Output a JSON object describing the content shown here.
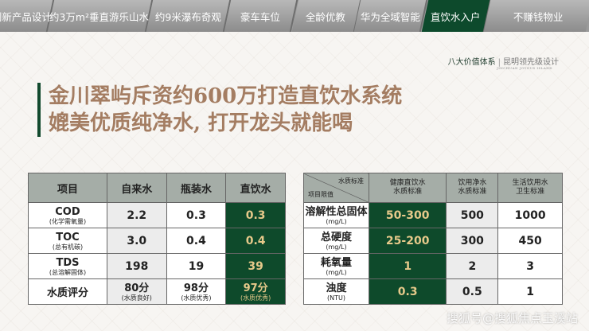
{
  "tabs": [
    {
      "label": "创新产品设计",
      "active": false
    },
    {
      "label": "约3万m²垂直游乐山水",
      "active": false
    },
    {
      "label": "约9米瀑布奇观",
      "active": false
    },
    {
      "label": "豪车车位",
      "active": false
    },
    {
      "label": "全龄优教",
      "active": false
    },
    {
      "label": "华为全域智能",
      "active": false
    },
    {
      "label": "直饮水入户",
      "active": true
    },
    {
      "label": "不赚钱物业",
      "active": false
    }
  ],
  "brand": {
    "main": "八大价值体系",
    "sep": "|",
    "sub": "昆明领先级设计",
    "en": "JINCHUAN JOYOUS ISLAND"
  },
  "title": {
    "line1": "金川翠屿斥资约600万打造直饮水系统",
    "line2": "媲美优质纯净水, 打开龙头就能喝"
  },
  "left_table": {
    "headers": [
      "项目",
      "自来水",
      "瓶装水",
      "直饮水"
    ],
    "rows": [
      {
        "name": "COD",
        "note": "(化学需氧量)",
        "values": [
          "2.2",
          "0.3",
          "0.3"
        ]
      },
      {
        "name": "TOC",
        "note": "(总有机碳)",
        "values": [
          "3.0",
          "0.4",
          "0.4"
        ]
      },
      {
        "name": "TDS",
        "note": "(总溶解固体)",
        "values": [
          "198",
          "19",
          "39"
        ]
      }
    ],
    "score": {
      "name": "水质评分",
      "values": [
        {
          "v": "80分",
          "n": "(水质良好)"
        },
        {
          "v": "98分",
          "n": "(水质优秀)"
        },
        {
          "v": "97分",
          "n": "(水质优秀)"
        }
      ]
    }
  },
  "right_table": {
    "corner_top": "水质标准",
    "corner_bottom": "项目限值",
    "headers": [
      [
        "健康直饮水",
        "水质标准"
      ],
      [
        "饮用净水",
        "水质标准"
      ],
      [
        "生活饮用水",
        "卫生标准"
      ]
    ],
    "rows": [
      {
        "name": "溶解性总固体",
        "unit": "(mg/L)",
        "values": [
          "50-300",
          "500",
          "1000"
        ]
      },
      {
        "name": "总硬度",
        "unit": "(mg/L)",
        "values": [
          "25-200",
          "300",
          "450"
        ]
      },
      {
        "name": "耗氧量",
        "unit": "(mg/L)",
        "values": [
          "1",
          "2",
          "3"
        ]
      },
      {
        "name": "浊度",
        "unit": "(NTU)",
        "values": [
          "0.3",
          "0.5",
          "1"
        ]
      }
    ]
  },
  "watermark": "搜狐号@搜狐焦点玉溪站",
  "colors": {
    "accent": "#0e4a2b",
    "title": "#a47d62",
    "highlight_text": "#e6c98a"
  }
}
